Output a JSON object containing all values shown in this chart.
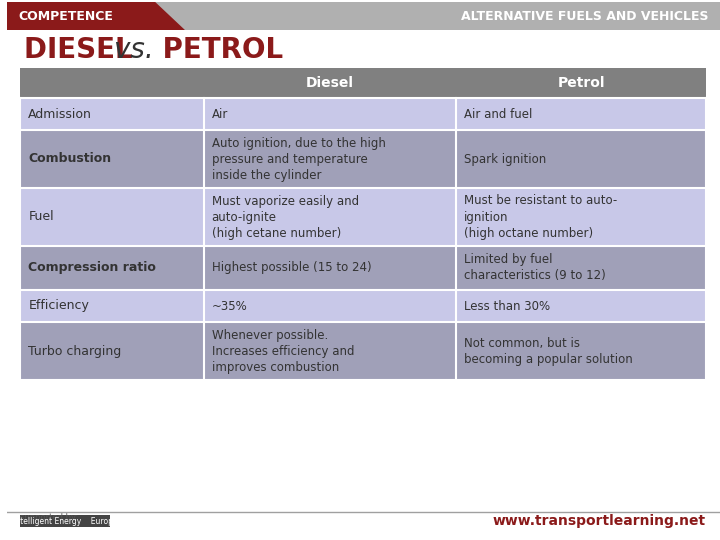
{
  "title": "DIESEL vs. PETROL",
  "header_title": "ALTERNATIVE FUELS AND VEHICLES",
  "competence_text": "COMPETENCE",
  "rows": [
    {
      "label": "Admission",
      "diesel": "Air",
      "petrol": "Air and fuel",
      "bold_label": false
    },
    {
      "label": "Combustion",
      "diesel": "Auto ignition, due to the high\npressure and temperature\ninside the cylinder",
      "petrol": "Spark ignition",
      "bold_label": true
    },
    {
      "label": "Fuel",
      "diesel": "Must vaporize easily and\nauto-ignite\n(high cetane number)",
      "petrol": "Must be resistant to auto-\nignition\n(high octane number)",
      "bold_label": false
    },
    {
      "label": "Compression ratio",
      "diesel": "Highest possible (15 to 24)",
      "petrol": "Limited by fuel\ncharacteristics (9 to 12)",
      "bold_label": true
    },
    {
      "label": "Efficiency",
      "diesel": "~35%",
      "petrol": "Less than 30%",
      "bold_label": false
    },
    {
      "label": "Turbo charging",
      "diesel": "Whenever possible.\nIncreases efficiency and\nimproves combustion",
      "petrol": "Not common, but is\nbecoming a popular solution",
      "bold_label": false
    }
  ],
  "col_headers": [
    "Diesel",
    "Petrol"
  ],
  "color_header_bg": "#808080",
  "color_header_text": "#ffffff",
  "color_row_even_bg": "#c8c8e8",
  "color_row_odd_bg": "#a0a0b8",
  "color_label_text_normal": "#333333",
  "color_label_text_bold": "#333333",
  "color_cell_text": "#333333",
  "top_bar_color": "#c0c0c0",
  "top_bar_dark": "#8b1a1a",
  "footer_url": "www.transportlearning.net",
  "footer_url_color": "#8b1a1a",
  "bg_color": "#ffffff",
  "title_color": "#8b1a1a",
  "title_vs_color": "#333333"
}
